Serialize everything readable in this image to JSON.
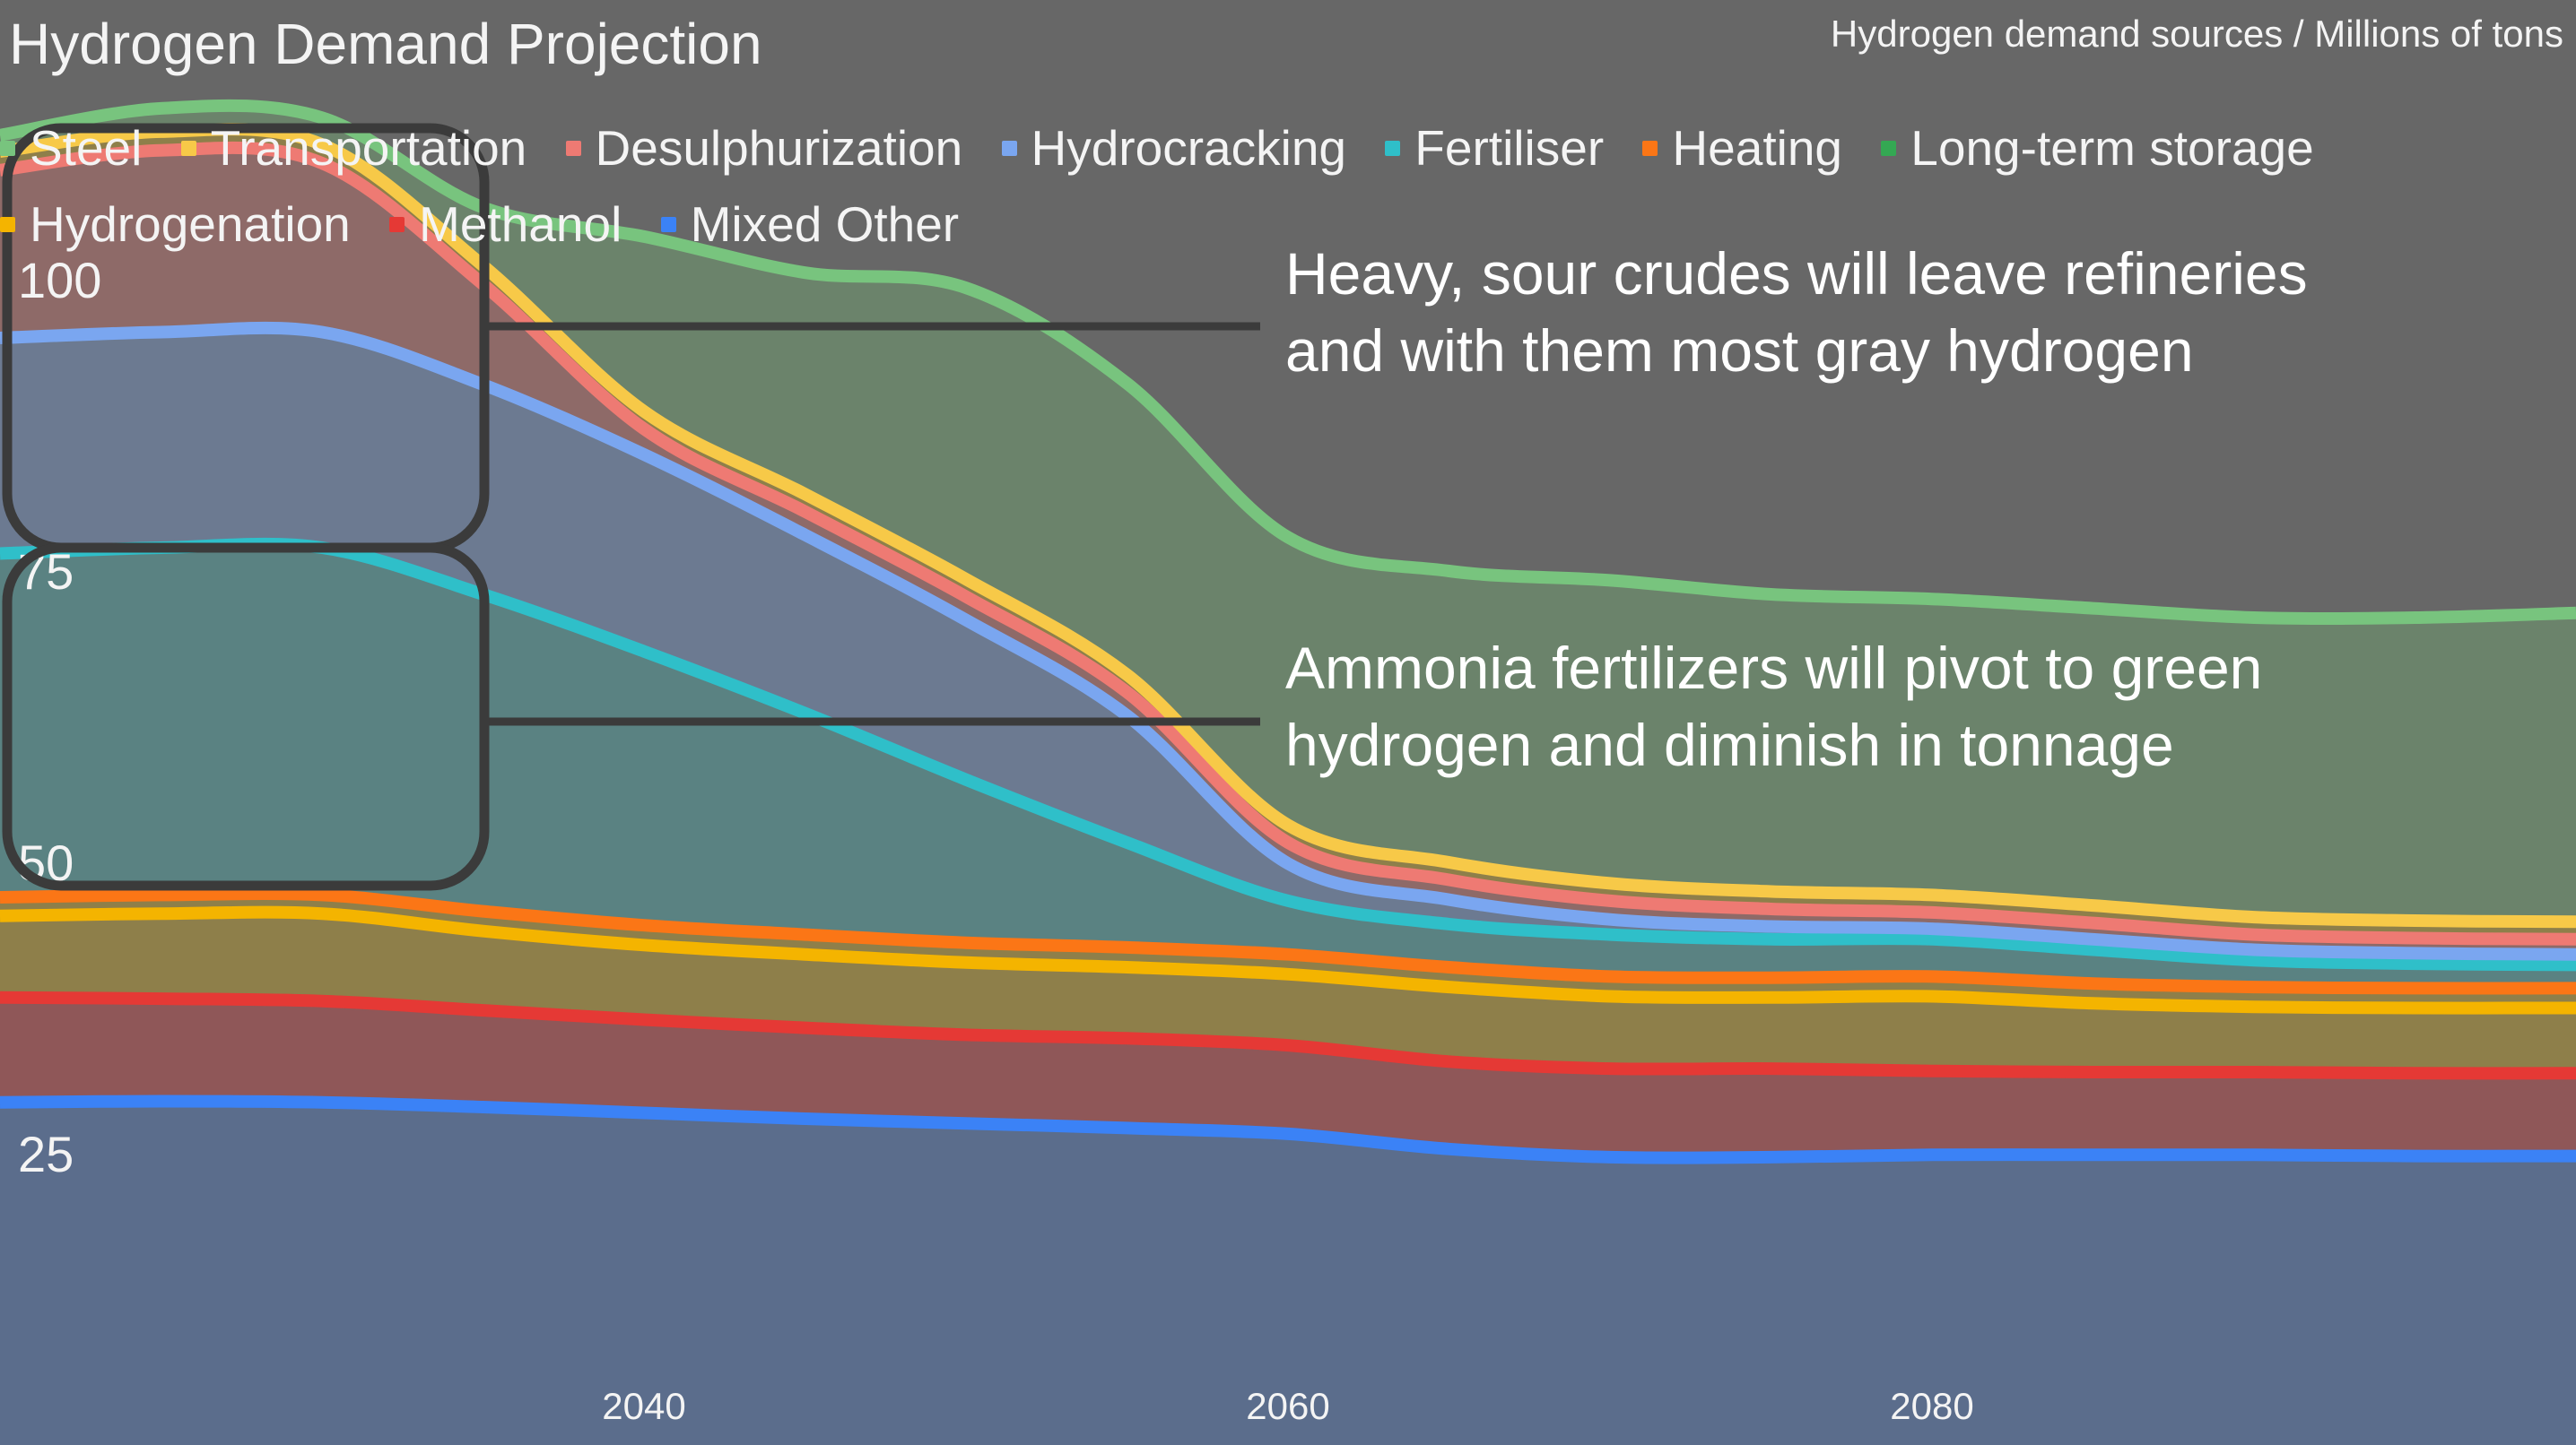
{
  "header": {
    "title": "Hydrogen Demand Projection",
    "subtitle": "Hydrogen demand sources / Millions of tons"
  },
  "legend": [
    {
      "label": "Steel",
      "color": "#78c47e"
    },
    {
      "label": "Transportation",
      "color": "#f7c948"
    },
    {
      "label": "Desulphurization",
      "color": "#ee7a73"
    },
    {
      "label": "Hydrocracking",
      "color": "#7aa6f0"
    },
    {
      "label": "Fertiliser",
      "color": "#2fbfc9"
    },
    {
      "label": "Heating",
      "color": "#fb7616"
    },
    {
      "label": "Long-term storage",
      "color": "#34a853"
    },
    {
      "label": "Hydrogenation",
      "color": "#f4b400"
    },
    {
      "label": "Methanol",
      "color": "#e53935"
    },
    {
      "label": "Mixed Other",
      "color": "#3b82f6"
    }
  ],
  "annotations": [
    {
      "text_line1": "Heavy, sour crudes will leave refineries",
      "text_line2": "and with them most gray hydrogen",
      "bracket_y_range": [
        77,
        113
      ]
    },
    {
      "text_line1": "Ammonia fertilizers will pivot to green",
      "text_line2": "hydrogen and diminish in tonnage",
      "bracket_y_range": [
        48,
        77
      ]
    }
  ],
  "chart_data": {
    "type": "area",
    "stacked": true,
    "title": "Hydrogen Demand Projection",
    "subtitle": "Hydrogen demand sources / Millions of tons",
    "xlim": [
      2020,
      2100
    ],
    "ylim": [
      0,
      124
    ],
    "x_ticks": [
      2040,
      2060,
      2080
    ],
    "y_ticks": [
      25,
      50,
      75,
      100
    ],
    "grid": false,
    "legend_position": "top-left",
    "x": [
      2020,
      2025,
      2030,
      2035,
      2040,
      2045,
      2050,
      2055,
      2060,
      2065,
      2070,
      2075,
      2080,
      2085,
      2090,
      2095,
      2100
    ],
    "series": [
      {
        "name": "Mixed Other",
        "color": "#3b82f6",
        "fill": "#5b6d8c",
        "values": [
          29.4,
          29.5,
          29.4,
          29.0,
          28.5,
          28.0,
          27.6,
          27.2,
          26.7,
          25.4,
          24.7,
          24.7,
          24.9,
          24.9,
          24.9,
          24.8,
          24.8
        ]
      },
      {
        "name": "Methanol",
        "color": "#e53935",
        "fill": "#8f5758",
        "values": [
          9.0,
          8.8,
          8.7,
          8.3,
          8.0,
          7.8,
          7.6,
          7.7,
          7.6,
          7.5,
          7.6,
          7.6,
          7.2,
          7.1,
          7.1,
          7.1,
          7.1
        ]
      },
      {
        "name": "Hydrogenation",
        "color": "#f4b400",
        "fill": "#8e7f4a",
        "values": [
          7.0,
          7.3,
          7.5,
          6.8,
          6.4,
          6.3,
          6.2,
          6.1,
          6.1,
          6.4,
          6.2,
          6.1,
          6.4,
          5.9,
          5.6,
          5.6,
          5.6
        ]
      },
      {
        "name": "Heating",
        "color": "#fb7616",
        "fill": "#8e7f4a",
        "values": [
          1.6,
          1.6,
          1.6,
          1.7,
          1.7,
          1.7,
          1.7,
          1.7,
          1.7,
          1.7,
          1.7,
          1.7,
          1.7,
          1.7,
          1.7,
          1.7,
          1.7
        ]
      },
      {
        "name": "Fertiliser",
        "color": "#2fbfc9",
        "fill": "#5a8282",
        "values": [
          29.5,
          29.8,
          29.8,
          27.2,
          23.5,
          19.0,
          14.0,
          9.0,
          4.6,
          3.7,
          3.6,
          3.3,
          3.2,
          2.9,
          2.3,
          2.1,
          2.0
        ]
      },
      {
        "name": "Hydrocracking",
        "color": "#7aa6f0",
        "fill": "#6c7a91",
        "values": [
          18.5,
          18.5,
          18.5,
          18.0,
          16.9,
          15.3,
          13.7,
          10.9,
          3.2,
          2.1,
          1.3,
          1.1,
          0.9,
          0.9,
          0.9,
          0.9,
          0.9
        ]
      },
      {
        "name": "Desulphurization",
        "color": "#ee7a73",
        "fill": "#8e6a68",
        "values": [
          14.4,
          15.6,
          14.5,
          8.6,
          2.2,
          2.0,
          2.0,
          2.0,
          1.8,
          1.7,
          1.6,
          1.5,
          1.4,
          1.4,
          1.3,
          1.3,
          1.3
        ]
      },
      {
        "name": "Transportation",
        "color": "#f7c948",
        "fill": "#8e7f4a",
        "values": [
          1.6,
          1.6,
          1.6,
          1.6,
          1.5,
          1.5,
          1.5,
          1.5,
          1.5,
          1.5,
          1.5,
          1.5,
          1.5,
          1.5,
          1.5,
          1.5,
          1.5
        ]
      },
      {
        "name": "Steel",
        "color": "#78c47e",
        "fill": "#6b836b",
        "values": [
          1.4,
          2.0,
          2.3,
          5.0,
          15.0,
          19.0,
          25.0,
          25.0,
          24.7,
          25.0,
          26.0,
          25.5,
          25.4,
          25.5,
          25.7,
          26.0,
          26.5
        ]
      }
    ]
  }
}
